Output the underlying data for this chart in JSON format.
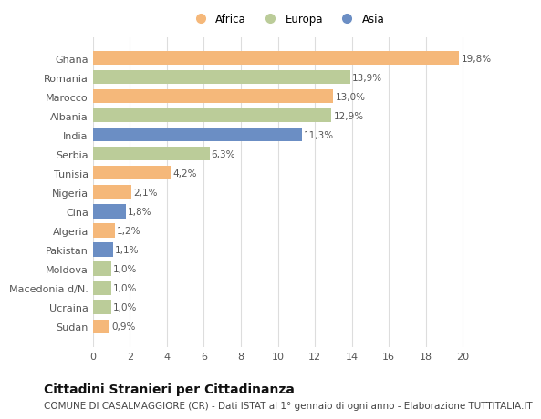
{
  "countries": [
    "Ghana",
    "Romania",
    "Marocco",
    "Albania",
    "India",
    "Serbia",
    "Tunisia",
    "Nigeria",
    "Cina",
    "Algeria",
    "Pakistan",
    "Moldova",
    "Macedonia d/N.",
    "Ucraina",
    "Sudan"
  ],
  "values": [
    19.8,
    13.9,
    13.0,
    12.9,
    11.3,
    6.3,
    4.2,
    2.1,
    1.8,
    1.2,
    1.1,
    1.0,
    1.0,
    1.0,
    0.9
  ],
  "labels": [
    "19,8%",
    "13,9%",
    "13,0%",
    "12,9%",
    "11,3%",
    "6,3%",
    "4,2%",
    "2,1%",
    "1,8%",
    "1,2%",
    "1,1%",
    "1,0%",
    "1,0%",
    "1,0%",
    "0,9%"
  ],
  "continents": [
    "Africa",
    "Europa",
    "Africa",
    "Europa",
    "Asia",
    "Europa",
    "Africa",
    "Africa",
    "Asia",
    "Africa",
    "Asia",
    "Europa",
    "Europa",
    "Europa",
    "Africa"
  ],
  "colors": {
    "Africa": "#F5B87A",
    "Europa": "#BBCC99",
    "Asia": "#6B8EC4"
  },
  "xlim": [
    0,
    21
  ],
  "xticks": [
    0,
    2,
    4,
    6,
    8,
    10,
    12,
    14,
    16,
    18,
    20
  ],
  "background_color": "#ffffff",
  "grid_color": "#dddddd",
  "title": "Cittadini Stranieri per Cittadinanza",
  "subtitle": "COMUNE DI CASALMAGGIORE (CR) - Dati ISTAT al 1° gennaio di ogni anno - Elaborazione TUTTITALIA.IT",
  "title_fontsize": 10,
  "subtitle_fontsize": 7.5,
  "bar_height": 0.72,
  "label_fontsize": 7.5,
  "ytick_fontsize": 8,
  "xtick_fontsize": 8,
  "legend_fontsize": 8.5
}
